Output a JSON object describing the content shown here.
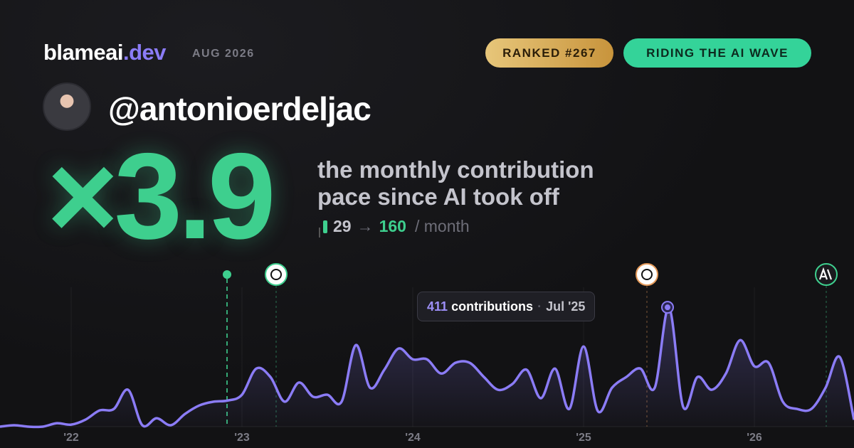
{
  "header": {
    "brand": "blameai",
    "tld": ".dev",
    "date": "AUG 2026",
    "badges": [
      "RANKED #267",
      "RIDING THE AI WAVE"
    ]
  },
  "profile": {
    "handle": "@antonioerdeljac"
  },
  "headline": {
    "multiplier": "×3.9",
    "line1": "the monthly contribution",
    "line2": "pace since AI took off",
    "from": 29,
    "arrow": "→",
    "to": 160,
    "unit": "/ month"
  },
  "tooltip": {
    "label": "contributions",
    "date": "Jul '25"
  },
  "chart_data": {
    "type": "area",
    "color": "#8b7cf6",
    "ylim": [
      0,
      480
    ],
    "categories": [
      null,
      null,
      null,
      null,
      null,
      "'22",
      null,
      null,
      null,
      null,
      null,
      null,
      null,
      null,
      null,
      null,
      null,
      "'23",
      null,
      null,
      null,
      null,
      null,
      null,
      null,
      null,
      null,
      null,
      null,
      "'24",
      null,
      null,
      null,
      null,
      null,
      null,
      null,
      null,
      null,
      null,
      null,
      "'25",
      null,
      null,
      null,
      null,
      null,
      null,
      null,
      null,
      null,
      null,
      null,
      "'26",
      null,
      null,
      null,
      null,
      null,
      null,
      null
    ],
    "values": [
      0,
      5,
      0,
      0,
      12,
      7,
      24,
      56,
      61,
      127,
      5,
      29,
      5,
      44,
      73,
      86,
      90,
      110,
      200,
      171,
      86,
      152,
      103,
      110,
      86,
      281,
      134,
      196,
      269,
      232,
      232,
      183,
      220,
      220,
      171,
      127,
      147,
      196,
      98,
      200,
      61,
      276,
      54,
      134,
      171,
      200,
      134,
      411,
      68,
      171,
      127,
      183,
      298,
      208,
      220,
      86,
      61,
      61,
      134,
      240,
      24
    ]
  }
}
